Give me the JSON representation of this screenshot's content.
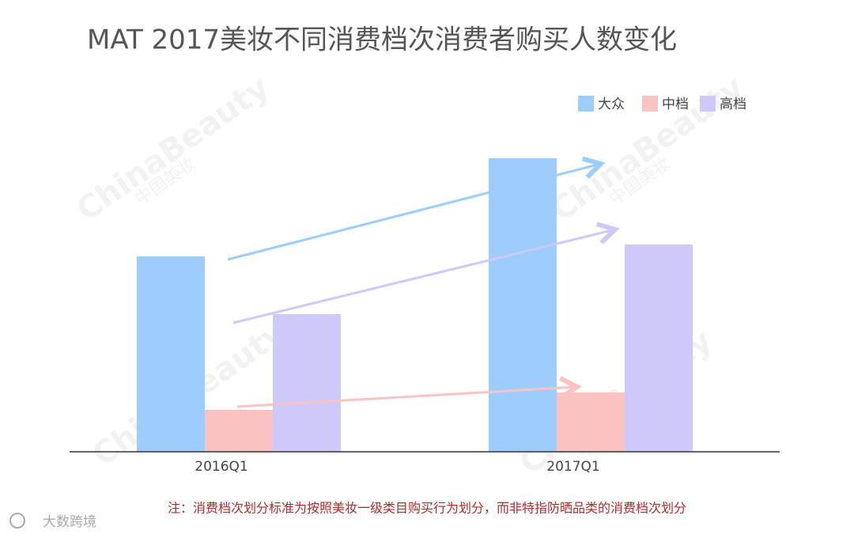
{
  "chart_data": {
    "type": "bar",
    "title": "MAT 2017美妆不同消费档次消费者购买人数变化",
    "categories": [
      "2016Q1",
      "2017Q1"
    ],
    "series": [
      {
        "name": "大众",
        "color": "#9ccdfb",
        "values": [
          247,
          371
        ]
      },
      {
        "name": "中档",
        "color": "#fac3c3",
        "values": [
          53,
          75
        ]
      },
      {
        "name": "高档",
        "color": "#cdc9f9",
        "values": [
          174,
          262
        ]
      }
    ],
    "ylim": [
      0,
      400
    ],
    "grid": false,
    "legend": "top-right",
    "note": "注：消费档次划分标准为按照美妆一级类目购买行为划分，而非特指防晒品类的消费档次划分",
    "watermark": "ChinaBeauty",
    "watermark_sub": "中国美妆",
    "logo": "大数跨境"
  }
}
